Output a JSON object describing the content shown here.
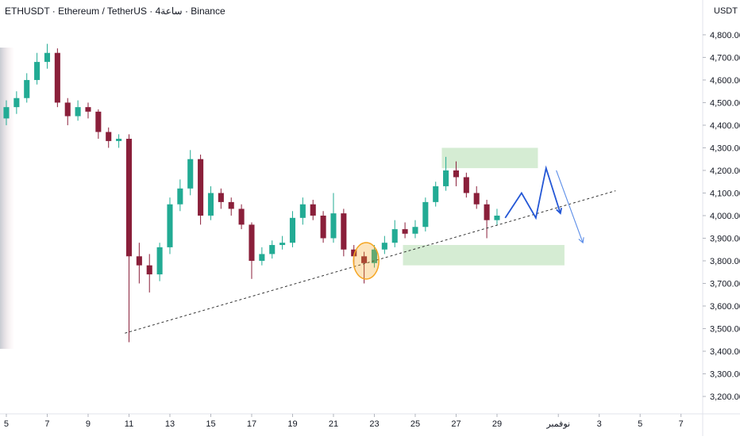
{
  "chart_data": {
    "type": "candlestick",
    "title": "ETHUSDT · Ethereum / TetherUS · 4ساعة · Binance",
    "y_axis_unit": "USDT",
    "x": [
      5,
      5.5,
      6,
      6.5,
      7,
      7.5,
      8,
      8.5,
      9,
      9.5,
      10,
      10.5,
      11,
      11.5,
      12,
      12.5,
      13,
      13.5,
      14,
      14.5,
      15,
      15.5,
      16,
      16.5,
      17,
      17.5,
      18,
      18.5,
      19,
      19.5,
      20,
      20.5,
      21,
      21.5,
      22,
      22.5,
      23,
      23.5,
      24,
      24.5,
      25,
      25.5,
      26,
      26.5,
      27,
      27.5,
      28,
      28.5,
      29
    ],
    "open": [
      4430,
      4480,
      4520,
      4600,
      4680,
      4720,
      4500,
      4440,
      4480,
      4460,
      4370,
      4330,
      4340,
      3820,
      3780,
      3740,
      3860,
      4050,
      4120,
      4250,
      4000,
      4100,
      4060,
      4030,
      3960,
      3800,
      3830,
      3870,
      3880,
      3990,
      4050,
      4000,
      3900,
      4010,
      3850,
      3820,
      3790,
      3850,
      3880,
      3940,
      3920,
      3950,
      4060,
      4130,
      4200,
      4170,
      4100,
      4050,
      3980
    ],
    "high": [
      4510,
      4550,
      4630,
      4720,
      4760,
      4740,
      4520,
      4510,
      4500,
      4470,
      4390,
      4360,
      4360,
      3880,
      3830,
      3880,
      4080,
      4160,
      4290,
      4270,
      4130,
      4120,
      4080,
      4050,
      3970,
      3860,
      3890,
      3910,
      4020,
      4080,
      4070,
      4020,
      4100,
      4030,
      3870,
      3840,
      3870,
      3910,
      3980,
      3970,
      3980,
      4080,
      4150,
      4260,
      4240,
      4190,
      4130,
      4070,
      4030
    ],
    "low": [
      4400,
      4450,
      4500,
      4580,
      4650,
      4480,
      4400,
      4420,
      4430,
      4340,
      4300,
      4300,
      3440,
      3700,
      3660,
      3710,
      3830,
      4020,
      4090,
      3960,
      3980,
      4030,
      4000,
      3940,
      3720,
      3780,
      3810,
      3850,
      3860,
      3960,
      3980,
      3880,
      3880,
      3820,
      3780,
      3700,
      3770,
      3830,
      3860,
      3900,
      3900,
      3930,
      4040,
      4110,
      4130,
      4080,
      4030,
      3900,
      3960
    ],
    "close": [
      4480,
      4520,
      4600,
      4680,
      4720,
      4500,
      4440,
      4480,
      4460,
      4370,
      4330,
      4340,
      3820,
      3780,
      3740,
      3860,
      4050,
      4120,
      4250,
      4000,
      4100,
      4060,
      4030,
      3960,
      3800,
      3830,
      3870,
      3880,
      3990,
      4050,
      4000,
      3900,
      4010,
      3850,
      3820,
      3790,
      3850,
      3880,
      3940,
      3920,
      3950,
      4060,
      4130,
      4200,
      4170,
      4100,
      4050,
      3980,
      4000
    ],
    "up_color": "#22ab94",
    "down_color": "#8a1f3a",
    "xlim": [
      4.69,
      39.06
    ],
    "xticks": [
      5,
      7,
      9,
      11,
      13,
      15,
      17,
      19,
      21,
      23,
      25,
      27,
      29,
      {
        "value": 32,
        "label": "نوفمبر"
      },
      {
        "value": 34,
        "label": "3"
      },
      {
        "value": 36,
        "label": "5"
      },
      {
        "value": 38,
        "label": "7"
      }
    ],
    "ylim": [
      3123,
      4954
    ],
    "yticks": [
      {
        "value": 3200,
        "label": "3,200.00"
      },
      {
        "value": 3300,
        "label": "3,300.00"
      },
      {
        "value": 3400,
        "label": "3,400.00"
      },
      {
        "value": 3500,
        "label": "3,500.00"
      },
      {
        "value": 3600,
        "label": "3,600.00"
      },
      {
        "value": 3700,
        "label": "3,700.00"
      },
      {
        "value": 3800,
        "label": "3,800.00"
      },
      {
        "value": 3900,
        "label": "3,900.00"
      },
      {
        "value": 4000,
        "label": "4,000.00"
      },
      {
        "value": 4100,
        "label": "4,100.00"
      },
      {
        "value": 4200,
        "label": "4,200.00"
      },
      {
        "value": 4300,
        "label": "4,300.00"
      },
      {
        "value": 4400,
        "label": "4,400.00"
      },
      {
        "value": 4500,
        "label": "4,500.00"
      },
      {
        "value": 4600,
        "label": "4,600.00"
      },
      {
        "value": 4700,
        "label": "4,700.00"
      },
      {
        "value": 4800,
        "label": "4,800.00"
      }
    ],
    "zones": [
      {
        "x": [
          26.3,
          31.0
        ],
        "y": [
          4210,
          4300
        ],
        "color": "#d5ecd3"
      },
      {
        "x": [
          24.4,
          32.3
        ],
        "y": [
          3780,
          3870
        ],
        "color": "#d5ecd3"
      }
    ],
    "trendline": {
      "x": [
        10.8,
        34.8
      ],
      "y": [
        3480,
        4110
      ],
      "color": "#333333"
    },
    "projections": [
      {
        "x": [
          29.4,
          30.2,
          30.9,
          31.4,
          32.1
        ],
        "y": [
          3990,
          4100,
          3990,
          4210,
          4010
        ],
        "color": "#2457d6"
      },
      {
        "x": [
          31.9,
          33.2
        ],
        "y": [
          4200,
          3880
        ],
        "color": "#5b8de8"
      }
    ],
    "highlight": {
      "x": 22.6,
      "y": 3800,
      "color": "#f5a623"
    }
  }
}
